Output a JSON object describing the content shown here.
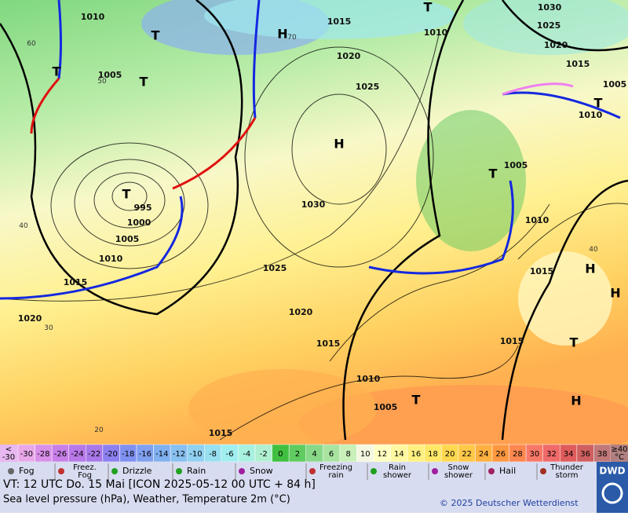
{
  "map": {
    "pressure_labels": [
      1010,
      1005,
      1030,
      1025,
      1020,
      1015,
      1005,
      1010,
      1015,
      1020,
      1025,
      1010,
      1030,
      1005,
      1010,
      995,
      1000,
      1005,
      1010,
      1015,
      1020,
      1025,
      1020,
      1015,
      1015,
      1010,
      1015,
      1005,
      1015
    ],
    "centers": [
      "T",
      "H",
      "T",
      "T",
      "H",
      "T",
      "T",
      "T",
      "T",
      "H",
      "H",
      "T",
      "H",
      "T"
    ],
    "temp_labels": [
      "60",
      "50",
      "40",
      "30",
      "20",
      "70",
      "40"
    ]
  },
  "colorbar": {
    "low_label": "<\n-30",
    "high_label": "≥40\n°C",
    "values": [
      -30,
      -28,
      -26,
      -24,
      -22,
      -20,
      -18,
      -16,
      -14,
      -12,
      -10,
      -8,
      -6,
      -4,
      -2,
      0,
      2,
      4,
      6,
      8,
      10,
      12,
      14,
      16,
      18,
      20,
      22,
      24,
      26,
      28,
      30,
      32,
      34,
      36,
      38
    ],
    "colors": [
      "#e8a8e8",
      "#d890e8",
      "#c880e8",
      "#b878e8",
      "#a878e8",
      "#8c80f0",
      "#8090f0",
      "#80a0f0",
      "#80b0f0",
      "#88c0f0",
      "#90d0f0",
      "#98e0f0",
      "#a0eef0",
      "#a8f0e0",
      "#b0f0d0",
      "#40c040",
      "#60cc60",
      "#88d888",
      "#a8e4a0",
      "#c8f0b8",
      "#f4f8e0",
      "#ffffc0",
      "#fff8a0",
      "#fff080",
      "#ffe868",
      "#ffd850",
      "#ffc848",
      "#ffb040",
      "#ff9840",
      "#ff8850",
      "#f87868",
      "#f06a6a",
      "#e05c5c",
      "#d06060",
      "#c07878"
    ],
    "low_color": "#e8b8f0",
    "high_color": "#b08080"
  },
  "legend": [
    "Fog",
    "Freez.\nFog",
    "Drizzle",
    "Rain",
    "Snow",
    "Freezing\nrain",
    "Rain\nshower",
    "Snow\nshower",
    "Hail",
    "Thunder\nstorm"
  ],
  "footer": {
    "valid": "VT: 12 UTC Do.  15 Mai [ICON 2025-05-12  00 UTC + 84 h]",
    "description": "Sea level pressure (hPa), Weather, Temperature 2m (°C)",
    "copyright": "© 2025 Deutscher Wetterdienst",
    "logo": "DWD"
  }
}
